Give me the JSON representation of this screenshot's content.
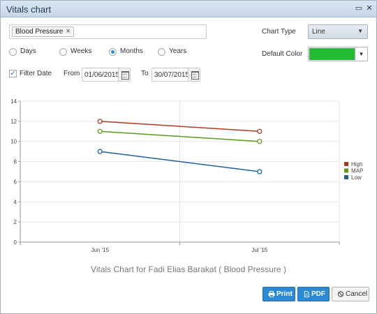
{
  "window": {
    "title": "Vitals chart"
  },
  "filter": {
    "tags": [
      {
        "label": "Blood Pressure"
      }
    ]
  },
  "chart_type": {
    "label": "Chart Type",
    "value": "Line"
  },
  "default_color": {
    "label": "Default Color",
    "color": "#22bb33"
  },
  "period": {
    "options": [
      {
        "label": "Days",
        "selected": false
      },
      {
        "label": "Weeks",
        "selected": false
      },
      {
        "label": "Months",
        "selected": true
      },
      {
        "label": "Years",
        "selected": false
      }
    ]
  },
  "date_filter": {
    "label": "Filter Date",
    "checked": true,
    "from_label": "From",
    "from_value": "01/06/2015",
    "to_label": "To",
    "to_value": "30/07/2015"
  },
  "chart_data": {
    "type": "line",
    "x": [
      "Jun '15",
      "Jul '15"
    ],
    "series": [
      {
        "name": "High",
        "values": [
          12,
          11
        ],
        "color": "#b03a1e"
      },
      {
        "name": "MAP",
        "values": [
          11,
          10
        ],
        "color": "#5a9a1a"
      },
      {
        "name": "Low",
        "values": [
          9,
          7
        ],
        "color": "#1f5f9e"
      }
    ],
    "title": "Vitals Chart for Fadi Elias Barakat ( Blood Pressure )",
    "xlabel": "",
    "ylabel": "",
    "ylim": [
      0,
      14
    ],
    "yticks": [
      0,
      2,
      4,
      6,
      8,
      10,
      12,
      14
    ],
    "grid": true,
    "legend": "right"
  },
  "buttons": {
    "print": "Print",
    "pdf": "PDF",
    "cancel": "Cancel"
  }
}
